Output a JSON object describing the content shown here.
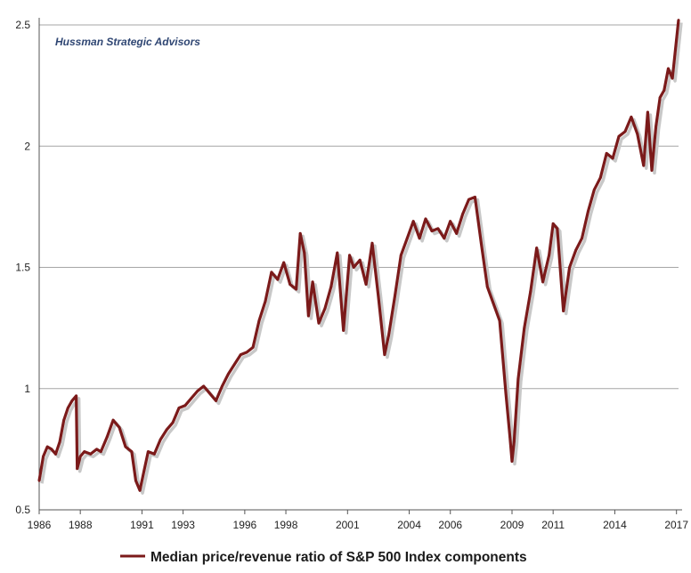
{
  "watermark": "Hussman Strategic Advisors",
  "colors": {
    "series": "#7b1a1a",
    "grid": "#a6a6a6",
    "axis": "#555555",
    "shadow": "#c8c8c8"
  },
  "chart_data": {
    "type": "line",
    "title": "",
    "xlabel": "",
    "ylabel": "",
    "xlim": [
      1986,
      2017.1
    ],
    "ylim": [
      0.5,
      2.5
    ],
    "x_ticks": [
      1986,
      1988,
      1991,
      1993,
      1996,
      1998,
      2001,
      2004,
      2006,
      2009,
      2011,
      2014,
      2017
    ],
    "x_tick_labels": [
      "1986",
      "1988",
      "1991",
      "1993",
      "1996",
      "1998",
      "2001",
      "2004",
      "2006",
      "2009",
      "2011",
      "2014",
      "2017"
    ],
    "y_ticks": [
      0.5,
      1,
      1.5,
      2,
      2.5
    ],
    "y_tick_labels": [
      "0.5",
      "1",
      "1.5",
      "2",
      "2.5"
    ],
    "grid": true,
    "legend_position": "bottom-center",
    "series": [
      {
        "name": "Median price/revenue ratio of S&P 500 Index components",
        "x": [
          1986.0,
          1986.2,
          1986.4,
          1986.6,
          1986.8,
          1987.0,
          1987.2,
          1987.4,
          1987.6,
          1987.8,
          1987.85,
          1988.0,
          1988.2,
          1988.5,
          1988.8,
          1989.0,
          1989.3,
          1989.6,
          1989.9,
          1990.2,
          1990.5,
          1990.7,
          1990.9,
          1991.1,
          1991.3,
          1991.6,
          1991.9,
          1992.2,
          1992.5,
          1992.8,
          1993.1,
          1993.4,
          1993.7,
          1994.0,
          1994.3,
          1994.6,
          1994.9,
          1995.2,
          1995.5,
          1995.8,
          1996.1,
          1996.4,
          1996.7,
          1997.0,
          1997.3,
          1997.6,
          1997.9,
          1998.2,
          1998.5,
          1998.7,
          1998.9,
          1999.1,
          1999.3,
          1999.6,
          1999.9,
          2000.2,
          2000.5,
          2000.8,
          2001.1,
          2001.3,
          2001.6,
          2001.9,
          2002.2,
          2002.5,
          2002.8,
          2003.0,
          2003.3,
          2003.6,
          2003.9,
          2004.2,
          2004.5,
          2004.8,
          2005.1,
          2005.4,
          2005.7,
          2006.0,
          2006.3,
          2006.6,
          2006.9,
          2007.2,
          2007.5,
          2007.8,
          2008.1,
          2008.4,
          2008.7,
          2008.9,
          2009.0,
          2009.1,
          2009.3,
          2009.6,
          2009.9,
          2010.2,
          2010.5,
          2010.8,
          2011.0,
          2011.2,
          2011.5,
          2011.8,
          2012.1,
          2012.4,
          2012.7,
          2013.0,
          2013.3,
          2013.6,
          2013.9,
          2014.2,
          2014.5,
          2014.8,
          2015.1,
          2015.4,
          2015.6,
          2015.8,
          2016.0,
          2016.2,
          2016.4,
          2016.6,
          2016.8,
          2017.0,
          2017.1
        ],
        "y": [
          0.62,
          0.72,
          0.76,
          0.75,
          0.73,
          0.78,
          0.87,
          0.92,
          0.95,
          0.97,
          0.67,
          0.72,
          0.74,
          0.73,
          0.75,
          0.74,
          0.8,
          0.87,
          0.84,
          0.76,
          0.74,
          0.62,
          0.58,
          0.66,
          0.74,
          0.73,
          0.79,
          0.83,
          0.86,
          0.92,
          0.93,
          0.96,
          0.99,
          1.01,
          0.98,
          0.95,
          1.01,
          1.06,
          1.1,
          1.14,
          1.15,
          1.17,
          1.28,
          1.36,
          1.48,
          1.45,
          1.52,
          1.43,
          1.41,
          1.64,
          1.56,
          1.3,
          1.44,
          1.27,
          1.33,
          1.42,
          1.56,
          1.24,
          1.55,
          1.5,
          1.53,
          1.43,
          1.6,
          1.38,
          1.14,
          1.22,
          1.38,
          1.55,
          1.62,
          1.69,
          1.62,
          1.7,
          1.65,
          1.66,
          1.62,
          1.69,
          1.64,
          1.72,
          1.78,
          1.79,
          1.6,
          1.42,
          1.35,
          1.28,
          0.98,
          0.8,
          0.7,
          0.78,
          1.04,
          1.25,
          1.4,
          1.58,
          1.44,
          1.55,
          1.68,
          1.66,
          1.32,
          1.5,
          1.57,
          1.62,
          1.73,
          1.82,
          1.87,
          1.97,
          1.95,
          2.04,
          2.06,
          2.12,
          2.05,
          1.92,
          2.14,
          1.9,
          2.08,
          2.2,
          2.23,
          2.32,
          2.28,
          2.44,
          2.52
        ]
      }
    ]
  }
}
